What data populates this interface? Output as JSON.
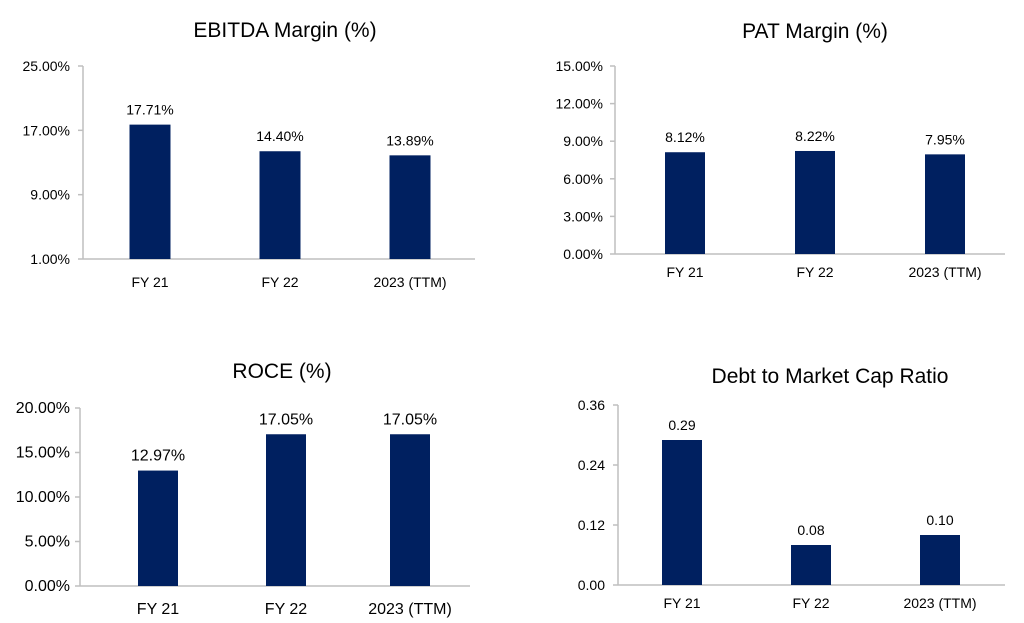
{
  "bar_color": "#002060",
  "axis_color": "#bfbfbf",
  "chart_data": [
    {
      "type": "bar",
      "title": "EBITDA Margin (%)",
      "categories": [
        "FY 21",
        "FY 22",
        "2023 (TTM)"
      ],
      "values": [
        17.71,
        14.4,
        13.89
      ],
      "data_labels": [
        "17.71%",
        "14.40%",
        "13.89%"
      ],
      "ylim": [
        1,
        25
      ],
      "yticks": [
        1,
        9,
        17,
        25
      ],
      "ytick_labels": [
        "1.00%",
        "9.00%",
        "17.00%",
        "25.00%"
      ],
      "grid": false,
      "legend": "none"
    },
    {
      "type": "bar",
      "title": "PAT Margin (%)",
      "categories": [
        "FY 21",
        "FY 22",
        "2023 (TTM)"
      ],
      "values": [
        8.12,
        8.22,
        7.95
      ],
      "data_labels": [
        "8.12%",
        "8.22%",
        "7.95%"
      ],
      "ylim": [
        0,
        15
      ],
      "yticks": [
        0,
        3,
        6,
        9,
        12,
        15
      ],
      "ytick_labels": [
        "0.00%",
        "3.00%",
        "6.00%",
        "9.00%",
        "12.00%",
        "15.00%"
      ],
      "grid": false,
      "legend": "none"
    },
    {
      "type": "bar",
      "title": "ROCE (%)",
      "categories": [
        "FY 21",
        "FY 22",
        "2023 (TTM)"
      ],
      "values": [
        12.97,
        17.05,
        17.05
      ],
      "data_labels": [
        "12.97%",
        "17.05%",
        "17.05%"
      ],
      "ylim": [
        0,
        20
      ],
      "yticks": [
        0,
        5,
        10,
        15,
        20
      ],
      "ytick_labels": [
        "0.00%",
        "5.00%",
        "10.00%",
        "15.00%",
        "20.00%"
      ],
      "grid": false,
      "legend": "none"
    },
    {
      "type": "bar",
      "title": "Debt to Market Cap Ratio",
      "categories": [
        "FY 21",
        "FY 22",
        "2023 (TTM)"
      ],
      "values": [
        0.29,
        0.08,
        0.1
      ],
      "data_labels": [
        "0.29",
        "0.08",
        "0.10"
      ],
      "ylim": [
        0,
        0.36
      ],
      "yticks": [
        0,
        0.12,
        0.24,
        0.36
      ],
      "ytick_labels": [
        "0.00",
        "0.12",
        "0.24",
        "0.36"
      ],
      "grid": false,
      "legend": "none"
    }
  ]
}
